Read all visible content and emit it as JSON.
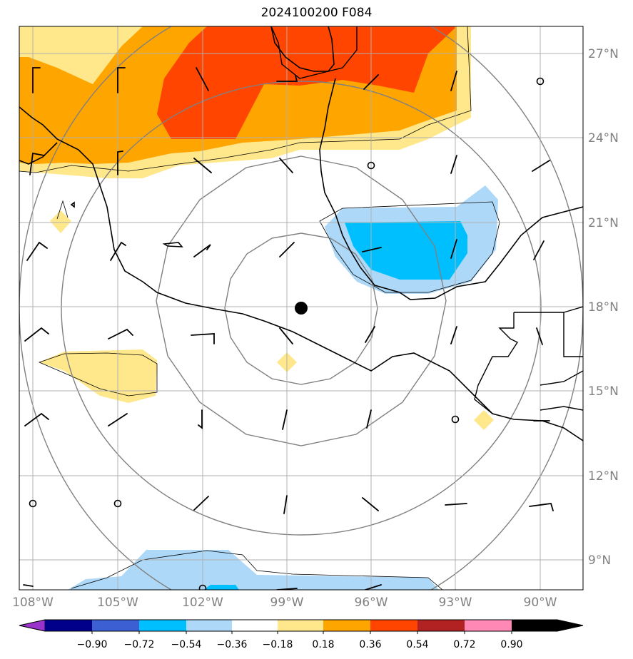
{
  "title": "2024100200 F084",
  "x_ticks": [
    "108°W",
    "105°W",
    "102°W",
    "99°W",
    "96°W",
    "93°W",
    "90°W"
  ],
  "y_ticks": [
    "27°N",
    "24°N",
    "21°N",
    "18°N",
    "15°N",
    "12°N",
    "9°N"
  ],
  "colorbar": {
    "colors": [
      "#9a33cc",
      "#00008b",
      "#3c5fd4",
      "#00bfff",
      "#add8f7",
      "#ffffff",
      "#ffe88c",
      "#ffa500",
      "#ff4500",
      "#b22222",
      "#ff88b4"
    ],
    "labels": [
      "−0.90",
      "−0.72",
      "−0.54",
      "−0.36",
      "−0.18",
      "0.18",
      "0.36",
      "0.54",
      "0.72",
      "0.90"
    ]
  },
  "center_marker": "storm-center-dot"
}
